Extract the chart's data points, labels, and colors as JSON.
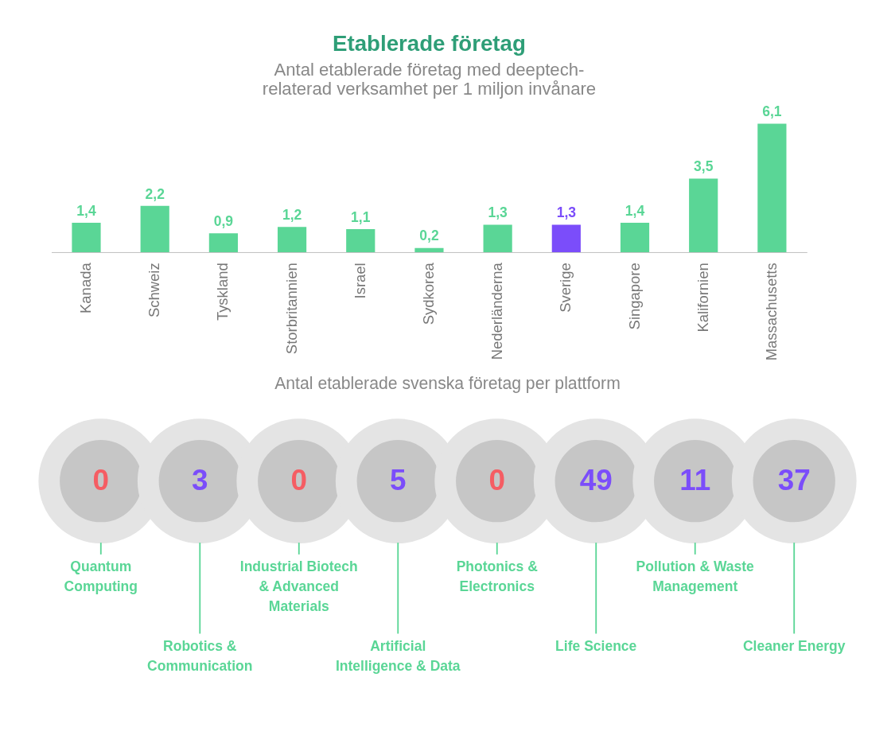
{
  "chart_data": [
    {
      "type": "bar",
      "title": "Etablerade företag",
      "subtitle": "Antal etablerade företag med deeptech-\nrelaterad verksamhet per 1 miljon invånare",
      "categories": [
        "Kanada",
        "Schweiz",
        "Tyskland",
        "Storbritannien",
        "Israel",
        "Sydkorea",
        "Nederländerna",
        "Sverige",
        "Singapore",
        "Kalifornien",
        "Massachusetts"
      ],
      "values": [
        1.4,
        2.2,
        0.9,
        1.2,
        1.1,
        0.2,
        1.3,
        1.3,
        1.4,
        3.5,
        6.1
      ],
      "value_labels": [
        "1,4",
        "2,2",
        "0,9",
        "1,2",
        "1,1",
        "0,2",
        "1,3",
        "1,3",
        "1,4",
        "3,5",
        "6,1"
      ],
      "colors": [
        "#5ad696",
        "#5ad696",
        "#5ad696",
        "#5ad696",
        "#5ad696",
        "#5ad696",
        "#5ad696",
        "#7b4dfa",
        "#5ad696",
        "#5ad696",
        "#5ad696"
      ],
      "tick_labels": "x"
    },
    {
      "type": "other",
      "title": "Antal etablerade svenska företag per plattform",
      "categories": [
        "Quantum\nComputing",
        "Robotics &\nCommunication",
        "Industrial Biotech\n& Advanced\nMaterials",
        "Artificial\nIntelligence & Data",
        "Photonics &\nElectronics",
        "Life Science",
        "Pollution & Waste\nManagement",
        "Cleaner Energy"
      ],
      "values": [
        0,
        3,
        0,
        5,
        0,
        49,
        11,
        37
      ],
      "data_labels": true,
      "colors": [
        "#c6c6c6",
        "#c6c6c6",
        "#c6c6c6",
        "#c6c6c6",
        "#c6c6c6",
        "#c6c6c6",
        "#c6c6c6",
        "#c6c6c6"
      ]
    }
  ]
}
